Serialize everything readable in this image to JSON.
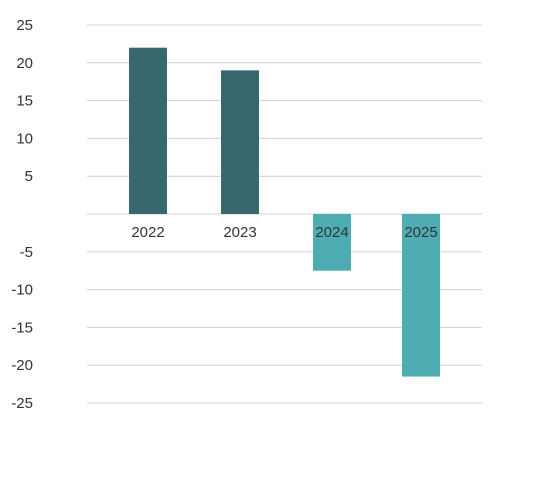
{
  "chart_data": {
    "type": "bar",
    "categories": [
      "2022",
      "2023",
      "2024",
      "2025"
    ],
    "values": [
      22,
      19,
      -7.5,
      -21.5
    ],
    "ylim": [
      -25,
      25
    ],
    "yticks": [
      25,
      20,
      15,
      10,
      5,
      -5,
      -10,
      -15,
      -20,
      -25
    ],
    "grid": true,
    "colors": {
      "positive": "#376870",
      "negative": "#4eadb3"
    },
    "title": "",
    "xlabel": "",
    "ylabel": ""
  }
}
